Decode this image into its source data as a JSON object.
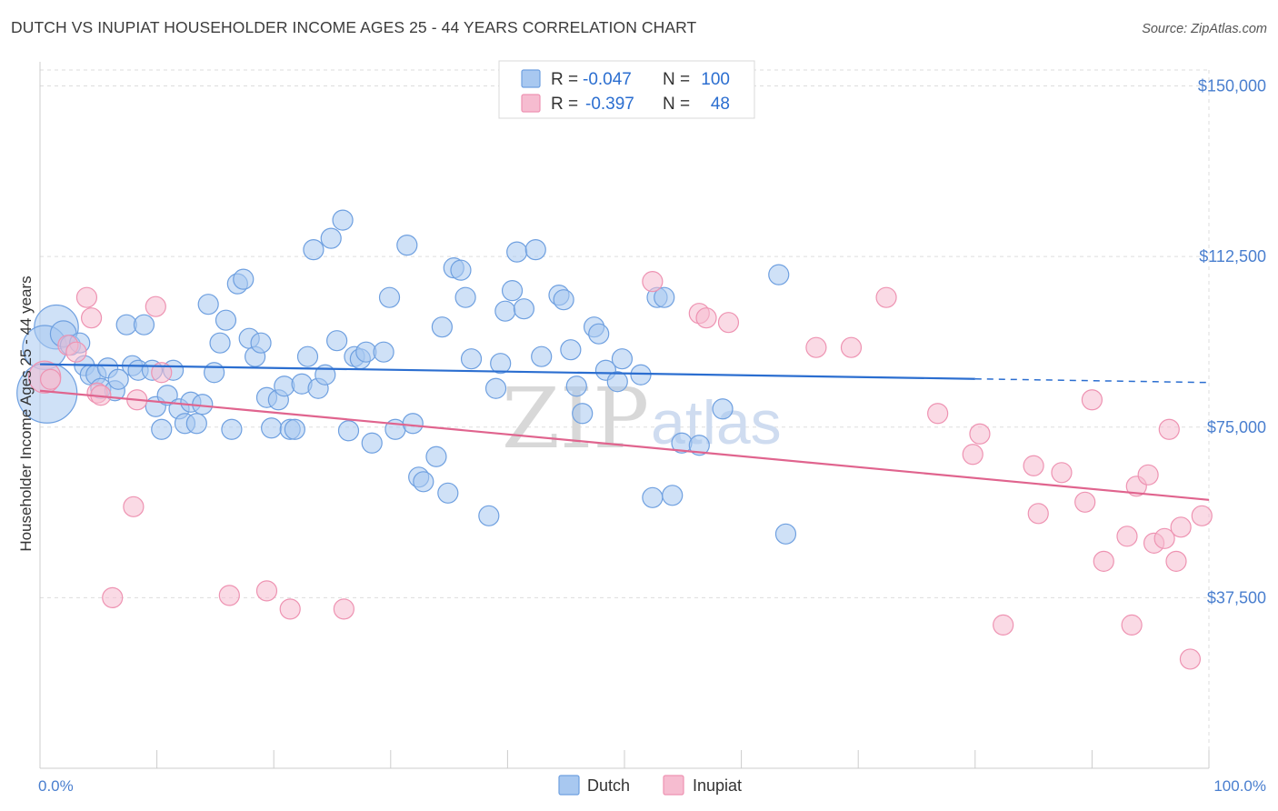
{
  "title": "DUTCH VS INUPIAT HOUSEHOLDER INCOME AGES 25 - 44 YEARS CORRELATION CHART",
  "source": "Source: ZipAtlas.com",
  "watermark": {
    "zip": "ZIP",
    "atlas": "atlas"
  },
  "legend": {
    "rows": [
      {
        "r_label": "R =",
        "r_value": "-0.047",
        "n_label": "N =",
        "n_value": "100"
      },
      {
        "r_label": "R =",
        "r_value": "-0.397",
        "n_label": "N =",
        "n_value": "48"
      }
    ]
  },
  "bottom_legend": {
    "dutch": "Dutch",
    "inupiat": "Inupiat"
  },
  "colors": {
    "dutch_fill": "#a8c8f0",
    "dutch_stroke": "#6fa0e0",
    "dutch_line": "#2b6ed0",
    "inupiat_fill": "#f6bcd0",
    "inupiat_stroke": "#ee93b2",
    "inupiat_line": "#e0648e",
    "axis_text": "#4a7fcf",
    "grid": "#dddddd"
  },
  "chart_data": {
    "type": "scatter",
    "title": "DUTCH VS INUPIAT HOUSEHOLDER INCOME AGES 25 - 44 YEARS CORRELATION CHART",
    "xlabel": "",
    "ylabel": "Householder Income Ages 25 - 44 years",
    "xlim": [
      0,
      100
    ],
    "ylim": [
      0,
      153500
    ],
    "x_tick_labels": [
      "0.0%",
      "100.0%"
    ],
    "y_ticks": [
      37500,
      75000,
      112500,
      150000
    ],
    "y_tick_labels": [
      "$37,500",
      "$75,000",
      "$112,500",
      "$150,000"
    ],
    "grid": true,
    "legend_position": "top-center",
    "series": [
      {
        "name": "Dutch",
        "R": -0.047,
        "N": 100,
        "trend": {
          "x": [
            0,
            80,
            100
          ],
          "y": [
            88800,
            85600,
            84800
          ],
          "dashed_from": 80
        },
        "points": [
          [
            1.4,
            97000,
            2.2
          ],
          [
            0.4,
            92500,
            2.2
          ],
          [
            0.6,
            82500,
            3.0
          ],
          [
            2.0,
            95500,
            1.3
          ],
          [
            2.6,
            93000,
            1.0
          ],
          [
            3.4,
            93500,
            1.0
          ],
          [
            3.8,
            88500,
            1.0
          ],
          [
            4.3,
            86500,
            1.0
          ],
          [
            4.8,
            86500,
            1.0
          ],
          [
            5.2,
            83500,
            1.0
          ],
          [
            5.8,
            88000,
            1.0
          ],
          [
            6.4,
            83000,
            1.0
          ],
          [
            6.7,
            85500,
            1.0
          ],
          [
            7.4,
            97500,
            1.0
          ],
          [
            7.9,
            88500,
            1.0
          ],
          [
            8.4,
            87500,
            1.0
          ],
          [
            8.9,
            97500,
            1.0
          ],
          [
            9.6,
            87500,
            1.0
          ],
          [
            9.9,
            79500,
            1.0
          ],
          [
            10.4,
            74500,
            1.0
          ],
          [
            10.9,
            82000,
            1.0
          ],
          [
            11.4,
            87500,
            1.0
          ],
          [
            11.9,
            79000,
            1.0
          ],
          [
            12.4,
            75800,
            1.0
          ],
          [
            12.9,
            80500,
            1.0
          ],
          [
            13.4,
            75800,
            1.0
          ],
          [
            13.9,
            80000,
            1.0
          ],
          [
            14.4,
            102000,
            1.0
          ],
          [
            14.9,
            87000,
            1.0
          ],
          [
            15.4,
            93500,
            1.0
          ],
          [
            15.9,
            98500,
            1.0
          ],
          [
            16.4,
            74500,
            1.0
          ],
          [
            16.9,
            106500,
            1.0
          ],
          [
            17.4,
            107500,
            1.0
          ],
          [
            17.9,
            94500,
            1.0
          ],
          [
            18.4,
            90500,
            1.0
          ],
          [
            18.9,
            93500,
            1.0
          ],
          [
            19.4,
            81500,
            1.0
          ],
          [
            19.8,
            74800,
            1.0
          ],
          [
            20.4,
            81000,
            1.0
          ],
          [
            20.9,
            84000,
            1.0
          ],
          [
            21.4,
            74500,
            1.0
          ],
          [
            21.8,
            74500,
            1.0
          ],
          [
            22.4,
            84500,
            1.0
          ],
          [
            22.9,
            90500,
            1.0
          ],
          [
            23.4,
            114000,
            1.0
          ],
          [
            23.8,
            83500,
            1.0
          ],
          [
            24.4,
            86500,
            1.0
          ],
          [
            24.9,
            116500,
            1.0
          ],
          [
            25.4,
            94000,
            1.0
          ],
          [
            25.9,
            120500,
            1.0
          ],
          [
            26.4,
            74200,
            1.0
          ],
          [
            26.9,
            90500,
            1.0
          ],
          [
            27.4,
            90000,
            1.0
          ],
          [
            27.9,
            91500,
            1.0
          ],
          [
            28.4,
            71500,
            1.0
          ],
          [
            29.4,
            91500,
            1.0
          ],
          [
            29.9,
            103500,
            1.0
          ],
          [
            30.4,
            74500,
            1.0
          ],
          [
            31.4,
            115000,
            1.0
          ],
          [
            31.9,
            75800,
            1.0
          ],
          [
            32.4,
            64000,
            1.0
          ],
          [
            32.8,
            63000,
            1.0
          ],
          [
            33.9,
            68500,
            1.0
          ],
          [
            34.4,
            97000,
            1.0
          ],
          [
            34.9,
            60500,
            1.0
          ],
          [
            35.4,
            110000,
            1.0
          ],
          [
            36.0,
            109500,
            1.0
          ],
          [
            36.4,
            103500,
            1.0
          ],
          [
            36.9,
            90000,
            1.0
          ],
          [
            38.4,
            55500,
            1.0
          ],
          [
            39.0,
            83500,
            1.0
          ],
          [
            39.4,
            89000,
            1.0
          ],
          [
            39.8,
            100500,
            1.0
          ],
          [
            40.4,
            105000,
            1.0
          ],
          [
            40.8,
            113500,
            1.0
          ],
          [
            41.4,
            101000,
            1.0
          ],
          [
            42.4,
            114000,
            1.0
          ],
          [
            42.9,
            90500,
            1.0
          ],
          [
            44.4,
            104000,
            1.0
          ],
          [
            44.8,
            103000,
            1.0
          ],
          [
            45.4,
            92000,
            1.0
          ],
          [
            45.9,
            84000,
            1.0
          ],
          [
            46.4,
            78000,
            1.0
          ],
          [
            47.4,
            97000,
            1.0
          ],
          [
            47.8,
            95500,
            1.0
          ],
          [
            48.4,
            87500,
            1.0
          ],
          [
            49.4,
            85000,
            1.0
          ],
          [
            49.8,
            90000,
            1.0
          ],
          [
            51.4,
            86500,
            1.0
          ],
          [
            52.4,
            59500,
            1.0
          ],
          [
            52.8,
            103500,
            1.0
          ],
          [
            53.4,
            103500,
            1.0
          ],
          [
            54.1,
            60000,
            1.0
          ],
          [
            54.9,
            71500,
            1.0
          ],
          [
            56.4,
            71000,
            1.0
          ],
          [
            58.4,
            79000,
            1.0
          ],
          [
            63.2,
            108500,
            1.0
          ],
          [
            63.8,
            51500,
            1.0
          ]
        ]
      },
      {
        "name": "Inupiat",
        "R": -0.397,
        "N": 48,
        "trend": {
          "x": [
            0,
            100
          ],
          "y": [
            83000,
            59000
          ]
        },
        "points": [
          [
            0.4,
            86000,
            1.6
          ],
          [
            0.9,
            85500,
            1.0
          ],
          [
            2.4,
            93000,
            1.0
          ],
          [
            3.1,
            91500,
            1.0
          ],
          [
            4.0,
            103500,
            1.0
          ],
          [
            4.4,
            99000,
            1.0
          ],
          [
            4.9,
            82500,
            1.0
          ],
          [
            5.2,
            82000,
            1.0
          ],
          [
            6.2,
            37500,
            1.0
          ],
          [
            8.0,
            57500,
            1.0
          ],
          [
            8.3,
            81000,
            1.0
          ],
          [
            9.9,
            101500,
            1.0
          ],
          [
            10.4,
            87000,
            1.0
          ],
          [
            16.2,
            38000,
            1.0
          ],
          [
            19.4,
            39000,
            1.0
          ],
          [
            21.4,
            35000,
            1.0
          ],
          [
            26.0,
            35000,
            1.0
          ],
          [
            52.4,
            107000,
            1.0
          ],
          [
            56.4,
            100000,
            1.0
          ],
          [
            57.0,
            99000,
            1.0
          ],
          [
            58.9,
            98000,
            1.0
          ],
          [
            66.4,
            92500,
            1.0
          ],
          [
            69.4,
            92500,
            1.0
          ],
          [
            72.4,
            103500,
            1.0
          ],
          [
            76.8,
            78000,
            1.0
          ],
          [
            79.8,
            69000,
            1.0
          ],
          [
            80.4,
            73500,
            1.0
          ],
          [
            82.4,
            31500,
            1.0
          ],
          [
            85.0,
            66500,
            1.0
          ],
          [
            85.4,
            56000,
            1.0
          ],
          [
            87.4,
            65000,
            1.0
          ],
          [
            89.4,
            58500,
            1.0
          ],
          [
            90.0,
            81000,
            1.0
          ],
          [
            91.0,
            45500,
            1.0
          ],
          [
            93.0,
            51000,
            1.0
          ],
          [
            93.4,
            31500,
            1.0
          ],
          [
            93.8,
            62000,
            1.0
          ],
          [
            94.8,
            64500,
            1.0
          ],
          [
            95.3,
            49500,
            1.0
          ],
          [
            96.2,
            50500,
            1.0
          ],
          [
            96.6,
            74500,
            1.0
          ],
          [
            97.2,
            45500,
            1.0
          ],
          [
            97.6,
            53000,
            1.0
          ],
          [
            98.4,
            24000,
            1.0
          ],
          [
            99.4,
            55500,
            1.0
          ]
        ]
      }
    ]
  }
}
